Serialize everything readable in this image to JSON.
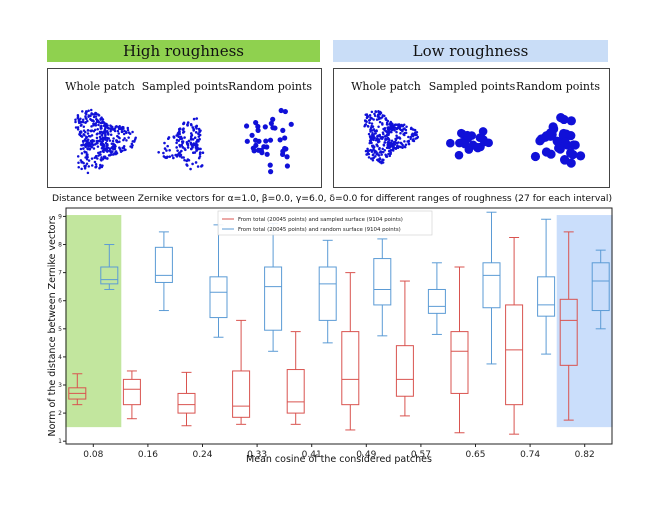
{
  "panels": [
    {
      "banner": "High roughness",
      "color": "#8fd14f",
      "labels": [
        "Whole patch",
        "Sampled points",
        "Random points"
      ]
    },
    {
      "banner": "Low roughness",
      "color": "#c9ddf7",
      "labels": [
        "Whole patch",
        "Sampled points",
        "Random points"
      ]
    }
  ],
  "chart_data": {
    "type": "box",
    "title": "Distance between Zernike vectors for α=1.0, β=0.0, γ=6.0, δ=0.0 for different ranges of roughness (27 for each interval)",
    "xlabel": "Mean cosine of the considered patches",
    "ylabel": "Norm of the distance between Zernike vectors",
    "categories": [
      "0.08",
      "0.16",
      "0.24",
      "0.33",
      "0.41",
      "0.49",
      "0.57",
      "0.65",
      "0.74",
      "0.82"
    ],
    "ylim": [
      0.9,
      9.3
    ],
    "yticks": [
      1,
      2,
      3,
      4,
      5,
      6,
      7,
      8,
      9
    ],
    "legend_position": "top-center",
    "highlight": [
      {
        "category_index": 0,
        "color": "#8fd14f",
        "label": "High roughness"
      },
      {
        "category_index": 9,
        "color": "#9ec2f7",
        "label": "Low roughness"
      }
    ],
    "series": [
      {
        "name": "From total (20045 points) and sampled surface (9104 points)",
        "color": "#d9534f",
        "boxes": [
          {
            "min": 2.3,
            "q1": 2.5,
            "median": 2.7,
            "q3": 2.9,
            "max": 3.4
          },
          {
            "min": 1.8,
            "q1": 2.3,
            "median": 2.85,
            "q3": 3.2,
            "max": 3.5
          },
          {
            "min": 1.55,
            "q1": 2.0,
            "median": 2.3,
            "q3": 2.7,
            "max": 3.45
          },
          {
            "min": 1.6,
            "q1": 1.85,
            "median": 2.25,
            "q3": 3.5,
            "max": 5.3
          },
          {
            "min": 1.6,
            "q1": 2.0,
            "median": 2.4,
            "q3": 3.55,
            "max": 4.9
          },
          {
            "min": 1.4,
            "q1": 2.3,
            "median": 3.2,
            "q3": 4.9,
            "max": 7.0
          },
          {
            "min": 1.9,
            "q1": 2.6,
            "median": 3.2,
            "q3": 4.4,
            "max": 6.7
          },
          {
            "min": 1.3,
            "q1": 2.7,
            "median": 4.2,
            "q3": 4.9,
            "max": 7.2
          },
          {
            "min": 1.25,
            "q1": 2.3,
            "median": 4.25,
            "q3": 5.85,
            "max": 8.25
          },
          {
            "min": 1.75,
            "q1": 3.7,
            "median": 5.3,
            "q3": 6.05,
            "max": 8.45
          }
        ]
      },
      {
        "name": "From total (20045 points) and random surface (9104 points)",
        "color": "#5b9bd5",
        "boxes": [
          {
            "min": 6.4,
            "q1": 6.6,
            "median": 6.75,
            "q3": 7.2,
            "max": 8.0
          },
          {
            "min": 5.65,
            "q1": 6.65,
            "median": 6.9,
            "q3": 7.9,
            "max": 8.45
          },
          {
            "min": 4.7,
            "q1": 5.4,
            "median": 6.3,
            "q3": 6.85,
            "max": 8.7
          },
          {
            "min": 4.2,
            "q1": 4.95,
            "median": 6.5,
            "q3": 7.2,
            "max": 8.75
          },
          {
            "min": 4.5,
            "q1": 5.3,
            "median": 6.6,
            "q3": 7.2,
            "max": 8.15
          },
          {
            "min": 4.75,
            "q1": 5.85,
            "median": 6.4,
            "q3": 7.5,
            "max": 8.2
          },
          {
            "min": 4.8,
            "q1": 5.55,
            "median": 5.8,
            "q3": 6.4,
            "max": 7.35
          },
          {
            "min": 3.75,
            "q1": 5.75,
            "median": 6.9,
            "q3": 7.35,
            "max": 9.15
          },
          {
            "min": 4.1,
            "q1": 5.45,
            "median": 5.85,
            "q3": 6.85,
            "max": 8.9
          },
          {
            "min": 5.0,
            "q1": 5.65,
            "median": 6.7,
            "q3": 7.35,
            "max": 7.8
          }
        ]
      }
    ]
  }
}
